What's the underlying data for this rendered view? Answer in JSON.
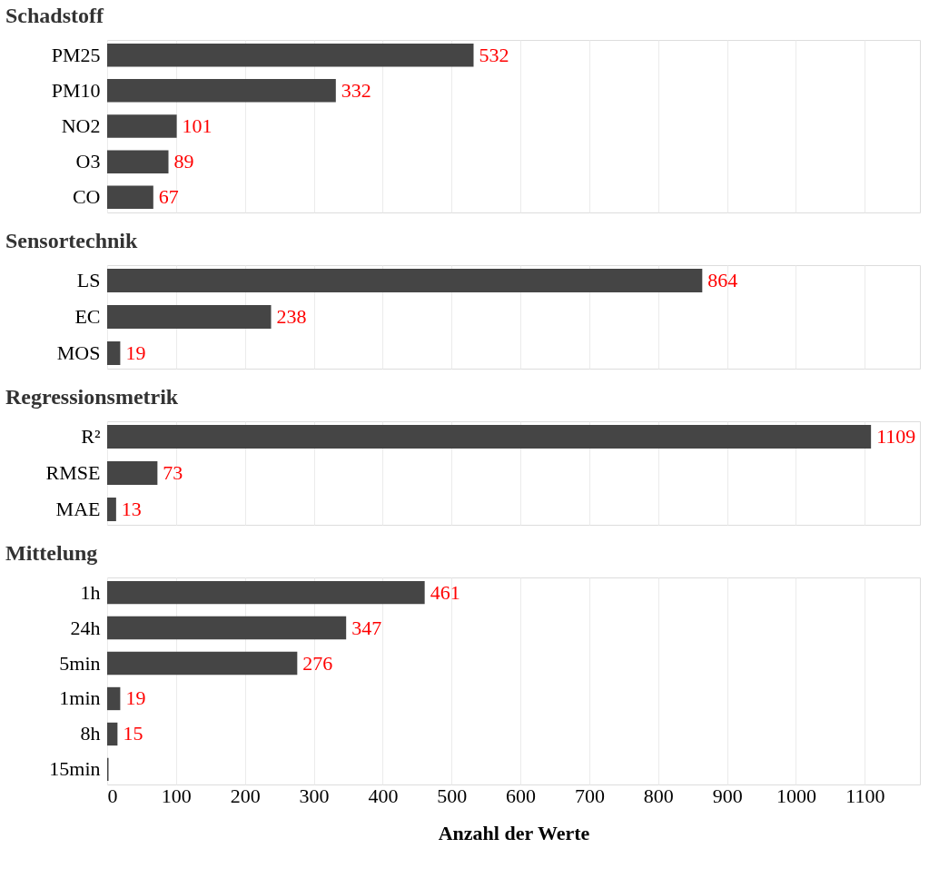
{
  "chart_data": [
    {
      "type": "bar",
      "orientation": "horizontal",
      "title": "Schadstoff",
      "categories": [
        "PM25",
        "PM10",
        "NO2",
        "O3",
        "CO"
      ],
      "values": [
        532,
        332,
        101,
        89,
        67
      ],
      "color": "#454545",
      "data_labels": true,
      "xlim": [
        0,
        1180
      ],
      "xticks": [
        0,
        100,
        200,
        300,
        400,
        500,
        600,
        700,
        800,
        900,
        1000,
        1100
      ],
      "grid": "x",
      "tick_labels": "y"
    },
    {
      "type": "bar",
      "orientation": "horizontal",
      "title": "Sensortechnik",
      "categories": [
        "LS",
        "EC",
        "MOS"
      ],
      "values": [
        864,
        238,
        19
      ],
      "color": "#454545",
      "data_labels": true,
      "xlim": [
        0,
        1180
      ],
      "xticks": [
        0,
        100,
        200,
        300,
        400,
        500,
        600,
        700,
        800,
        900,
        1000,
        1100
      ],
      "grid": "x",
      "tick_labels": "y"
    },
    {
      "type": "bar",
      "orientation": "horizontal",
      "title": "Regressionsmetrik",
      "categories": [
        "R²",
        "RMSE",
        "MAE"
      ],
      "values": [
        1109,
        73,
        13
      ],
      "color": "#454545",
      "data_labels": true,
      "xlim": [
        0,
        1180
      ],
      "xticks": [
        0,
        100,
        200,
        300,
        400,
        500,
        600,
        700,
        800,
        900,
        1000,
        1100
      ],
      "grid": "x",
      "tick_labels": "y"
    },
    {
      "type": "bar",
      "orientation": "horizontal",
      "title": "Mittelung",
      "xlabel": "Anzahl der Werte",
      "categories": [
        "1h",
        "24h",
        "5min",
        "1min",
        "8h",
        "15min"
      ],
      "values": [
        461,
        347,
        276,
        19,
        15,
        2
      ],
      "value_labels": [
        "461",
        "347",
        "276",
        "19",
        "15",
        null
      ],
      "color": "#454545",
      "xlim": [
        0,
        1180
      ],
      "xticks": [
        0,
        100,
        200,
        300,
        400,
        500,
        600,
        700,
        800,
        900,
        1000,
        1100
      ],
      "grid": "x"
    }
  ]
}
